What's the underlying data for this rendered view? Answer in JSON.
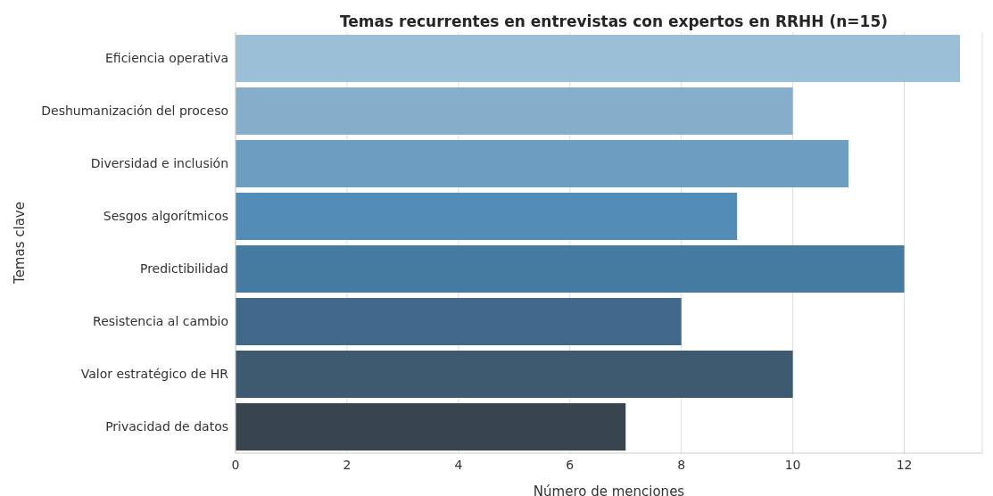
{
  "chart_data": {
    "type": "bar",
    "orientation": "horizontal",
    "title": "Temas recurrentes en entrevistas con expertos en RRHH (n=15)",
    "xlabel": "Número de menciones",
    "ylabel": "Temas clave",
    "categories": [
      "Eficiencia operativa",
      "Deshumanización del proceso",
      "Diversidad e inclusión",
      "Sesgos algorítmicos",
      "Predictibilidad",
      "Resistencia al cambio",
      "Valor estratégico de HR",
      "Privacidad de datos"
    ],
    "values": [
      13,
      10,
      11,
      9,
      12,
      8,
      10,
      7
    ],
    "colors": [
      "#9bbfd7",
      "#86aecb",
      "#6b9ec0",
      "#538cb7",
      "#457ba0",
      "#41678a",
      "#3d5a70",
      "#38454f"
    ],
    "xlim": [
      0,
      13.4
    ],
    "xticks": [
      0,
      2,
      4,
      6,
      8,
      10,
      12
    ],
    "grid": "x"
  }
}
